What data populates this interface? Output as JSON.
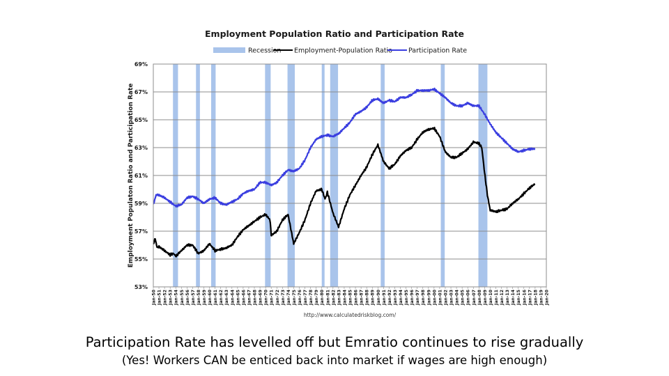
{
  "chart_data": {
    "type": "line",
    "title": "Employment Population Ratio and Participation Rate",
    "ylabel": "Employment Populaton Ratio and Participation Rate",
    "xlabel": "",
    "source": "http://www.calculatedriskblog.com/",
    "ylim": [
      53,
      69
    ],
    "xlim": [
      1950,
      2020
    ],
    "y_ticks": [
      "53%",
      "55%",
      "57%",
      "59%",
      "61%",
      "63%",
      "65%",
      "67%",
      "69%"
    ],
    "y_tick_values": [
      53,
      55,
      57,
      59,
      61,
      63,
      65,
      67,
      69
    ],
    "x_tick_labels": [
      "Jan-50",
      "Jan-51",
      "Jan-52",
      "Jan-53",
      "Jan-54",
      "Jan-55",
      "Jan-56",
      "Jan-57",
      "Jan-58",
      "Jan-59",
      "Jan-60",
      "Jan-61",
      "Jan-62",
      "Jan-63",
      "Jan-64",
      "Jan-65",
      "Jan-66",
      "Jan-67",
      "Jan-68",
      "Jan-69",
      "Jan-70",
      "Jan-71",
      "Jan-72",
      "Jan-73",
      "Jan-74",
      "Jan-75",
      "Jan-76",
      "Jan-77",
      "Jan-78",
      "Jan-79",
      "Jan-80",
      "Jan-81",
      "Jan-82",
      "Jan-83",
      "Jan-84",
      "Jan-85",
      "Jan-86",
      "Jan-87",
      "Jan-88",
      "Jan-89",
      "Jan-90",
      "Jan-91",
      "Jan-92",
      "Jan-93",
      "Jan-94",
      "Jan-95",
      "Jan-96",
      "Jan-97",
      "Jan-98",
      "Jan-99",
      "Jan-00",
      "Jan-01",
      "Jan-02",
      "Jan-03",
      "Jan-04",
      "Jan-05",
      "Jan-06",
      "Jan-07",
      "Jan-08",
      "Jan-09",
      "Jan-10",
      "Jan-11",
      "Jan-12",
      "Jan-13",
      "Jan-14",
      "Jan-15",
      "Jan-16",
      "Jan-17",
      "Jan-18",
      "Jan-19",
      "Jan-20"
    ],
    "legend": [
      {
        "name": "Recession",
        "kind": "bar",
        "color": "#a9c4eb"
      },
      {
        "name": "Employment-Population Ratio",
        "kind": "line",
        "color": "#000000"
      },
      {
        "name": "Participation Rate",
        "kind": "line",
        "color": "#3a3ee0"
      }
    ],
    "recessions": [
      [
        1953.5,
        1954.4
      ],
      [
        1957.6,
        1958.3
      ],
      [
        1960.3,
        1961.1
      ],
      [
        1969.9,
        1970.9
      ],
      [
        1973.9,
        1975.2
      ],
      [
        1980.0,
        1980.5
      ],
      [
        1981.5,
        1982.9
      ],
      [
        1990.5,
        1991.2
      ],
      [
        2001.2,
        2001.9
      ],
      [
        2007.9,
        2009.5
      ]
    ],
    "series": [
      {
        "name": "Participation Rate",
        "color": "#3a3ee0",
        "x": [
          1950,
          1950.5,
          1951,
          1952,
          1953,
          1954,
          1955,
          1956,
          1957,
          1958,
          1959,
          1960,
          1961,
          1962,
          1963,
          1964,
          1965,
          1966,
          1967,
          1968,
          1969,
          1970,
          1971,
          1972,
          1973,
          1974,
          1975,
          1976,
          1977,
          1978,
          1979,
          1980,
          1981,
          1982,
          1983,
          1984,
          1985,
          1986,
          1987,
          1988,
          1989,
          1990,
          1991,
          1992,
          1993,
          1994,
          1995,
          1996,
          1997,
          1998,
          1999,
          2000,
          2001,
          2002,
          2003,
          2004,
          2005,
          2006,
          2007,
          2008,
          2009,
          2010,
          2011,
          2012,
          2013,
          2014,
          2015,
          2016,
          2017,
          2018
        ],
        "values": [
          58.9,
          59.6,
          59.6,
          59.4,
          59.1,
          58.8,
          58.9,
          59.4,
          59.5,
          59.3,
          59.0,
          59.3,
          59.4,
          59.0,
          58.9,
          59.1,
          59.3,
          59.7,
          59.9,
          60.0,
          60.5,
          60.5,
          60.3,
          60.5,
          61.0,
          61.4,
          61.3,
          61.5,
          62.1,
          63.0,
          63.6,
          63.8,
          63.9,
          63.8,
          64.0,
          64.4,
          64.8,
          65.4,
          65.6,
          65.9,
          66.4,
          66.5,
          66.2,
          66.4,
          66.3,
          66.6,
          66.6,
          66.8,
          67.1,
          67.1,
          67.1,
          67.2,
          66.9,
          66.6,
          66.2,
          66.0,
          66.0,
          66.2,
          66.0,
          66.0,
          65.4,
          64.7,
          64.1,
          63.7,
          63.3,
          62.9,
          62.7,
          62.8,
          62.9,
          62.9
        ]
      },
      {
        "name": "Employment-Population Ratio",
        "color": "#000000",
        "x": [
          1950,
          1950.3,
          1950.7,
          1951,
          1952,
          1953,
          1953.6,
          1954,
          1955,
          1956,
          1957,
          1958,
          1959,
          1960,
          1961,
          1962,
          1963,
          1964,
          1965,
          1966,
          1967,
          1968,
          1969,
          1970,
          1970.8,
          1971,
          1972,
          1973,
          1974,
          1975,
          1976,
          1977,
          1978,
          1979,
          1980,
          1980.6,
          1981,
          1982,
          1983,
          1984,
          1985,
          1986,
          1987,
          1988,
          1989,
          1990,
          1991,
          1992,
          1993,
          1994,
          1995,
          1996,
          1997,
          1998,
          1999,
          2000,
          2001,
          2002,
          2003,
          2004,
          2005,
          2006,
          2007,
          2008,
          2008.5,
          2009,
          2009.5,
          2010,
          2011,
          2012,
          2013,
          2014,
          2015,
          2016,
          2017,
          2018
        ],
        "values": [
          56.0,
          56.5,
          55.8,
          55.9,
          55.6,
          55.3,
          55.4,
          55.2,
          55.6,
          56.0,
          56.0,
          55.4,
          55.6,
          56.1,
          55.6,
          55.7,
          55.8,
          56.0,
          56.6,
          57.1,
          57.4,
          57.7,
          58.0,
          58.2,
          57.8,
          56.7,
          57.0,
          57.8,
          58.2,
          56.1,
          56.9,
          57.8,
          59.0,
          59.9,
          60.0,
          59.3,
          59.8,
          58.3,
          57.3,
          58.6,
          59.6,
          60.3,
          61.0,
          61.6,
          62.5,
          63.2,
          62.0,
          61.5,
          61.8,
          62.4,
          62.8,
          63.0,
          63.6,
          64.1,
          64.3,
          64.4,
          63.8,
          62.7,
          62.3,
          62.3,
          62.6,
          62.9,
          63.4,
          63.3,
          63.0,
          61.2,
          59.6,
          58.5,
          58.4,
          58.5,
          58.6,
          59.0,
          59.3,
          59.7,
          60.1,
          60.4
        ]
      }
    ]
  },
  "caption": {
    "main": "Participation Rate has levelled off but Emratio continues to rise gradually",
    "sub": "(Yes!  Workers CAN be enticed back into market if wages are high enough)"
  }
}
